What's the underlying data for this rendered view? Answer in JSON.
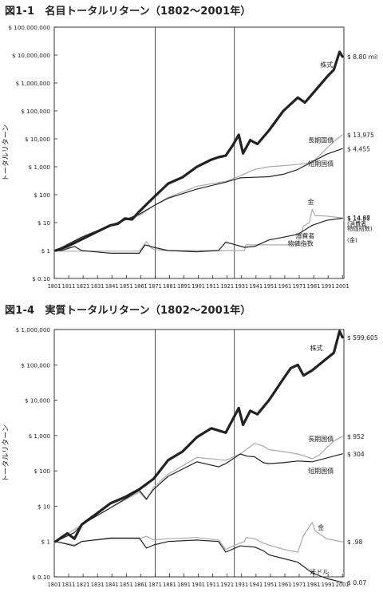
{
  "chart_data": [
    {
      "type": "line",
      "title": "図1-1　名目トータルリターン（1802〜2001年）",
      "ylabel": "トータルリターン",
      "yscale": "log",
      "ylim": [
        0.1,
        100000000
      ],
      "xlim": [
        1801,
        2002
      ],
      "x_ticks": [
        "1801",
        "1811",
        "1821",
        "1831",
        "1841",
        "1851",
        "1861",
        "1871",
        "1881",
        "1891",
        "1901",
        "1911",
        "1921",
        "1931",
        "1941",
        "1951",
        "1961",
        "1971",
        "1981",
        "1991",
        "2001"
      ],
      "y_ticks": [
        "$ 0.10",
        "$ 1",
        "$ 10",
        "$ 100",
        "$ 1,000",
        "$ 10,000",
        "$ 100,000",
        "$ 1,000,000",
        "$ 10,000,000",
        "$ 100,000,000"
      ],
      "vlines": [
        1871,
        1926
      ],
      "grid": false,
      "series": [
        {
          "name": "株式",
          "color": "#222222",
          "width": 3.2,
          "end_label": "$ 8.80 mil",
          "x": [
            1802,
            1810,
            1820,
            1830,
            1840,
            1845,
            1850,
            1855,
            1860,
            1865,
            1870,
            1880,
            1890,
            1900,
            1910,
            1915,
            1920,
            1925,
            1929,
            1932,
            1937,
            1942,
            1950,
            1960,
            1970,
            1975,
            1980,
            1990,
            1995,
            1999,
            2001
          ],
          "y": [
            1,
            1.4,
            2.5,
            4.5,
            8,
            9,
            14,
            13,
            25,
            45,
            80,
            250,
            420,
            1000,
            1800,
            2200,
            2500,
            6000,
            14000,
            3000,
            9000,
            6500,
            20000,
            100000,
            300000,
            200000,
            400000,
            1600000,
            3000000,
            13000000,
            8800000
          ]
        },
        {
          "name": "長期国債",
          "color": "#aaaaaa",
          "width": 1.2,
          "end_label": "$ 13,975",
          "x": [
            1802,
            1820,
            1840,
            1860,
            1870,
            1880,
            1900,
            1920,
            1929,
            1940,
            1950,
            1960,
            1970,
            1975,
            1980,
            1985,
            1990,
            1995,
            2001
          ],
          "y": [
            1,
            3,
            8,
            18,
            40,
            80,
            200,
            300,
            450,
            800,
            1000,
            1100,
            1200,
            1300,
            1450,
            2500,
            4500,
            8000,
            13975
          ]
        },
        {
          "name": "短期国債",
          "color": "#222222",
          "width": 1.2,
          "end_label": "$ 4,455",
          "x": [
            1802,
            1820,
            1840,
            1860,
            1870,
            1880,
            1900,
            1920,
            1930,
            1940,
            1950,
            1960,
            1970,
            1980,
            1990,
            2001
          ],
          "y": [
            1,
            3,
            8,
            20,
            40,
            75,
            160,
            280,
            400,
            420,
            440,
            540,
            800,
            1500,
            2800,
            4455
          ]
        },
        {
          "name": "金",
          "color": "#aaaaaa",
          "width": 1.2,
          "end_label": "$ 14.67",
          "x": [
            1802,
            1860,
            1862,
            1865,
            1868,
            1870,
            1878,
            1933,
            1934,
            1967,
            1970,
            1974,
            1978,
            1980,
            1982,
            1990,
            2001
          ],
          "y": [
            0.95,
            0.95,
            1.3,
            2.1,
            1.3,
            1.1,
            1,
            1,
            1.6,
            1.6,
            1.7,
            7.5,
            10,
            30,
            18,
            17,
            14.67
          ]
        },
        {
          "name": "消費者物価指数",
          "color": "#222222",
          "width": 1.2,
          "end_label": "$ 14.38",
          "x": [
            1802,
            1806,
            1815,
            1820,
            1840,
            1860,
            1864,
            1866,
            1870,
            1880,
            1900,
            1915,
            1920,
            1925,
            1933,
            1940,
            1950,
            1960,
            1970,
            1980,
            1990,
            2001
          ],
          "y": [
            1,
            1,
            1.4,
            1,
            0.8,
            0.8,
            1.6,
            1.5,
            1.3,
            1,
            0.9,
            1,
            2,
            1.7,
            1.3,
            1.4,
            2.4,
            3,
            3.8,
            8,
            12,
            14.38
          ]
        }
      ],
      "annotations": [
        {
          "text": "株式",
          "x": 1990,
          "y": 4500000
        },
        {
          "text": "長期国債",
          "x": 1986,
          "y": 9000
        },
        {
          "text": "短期国債",
          "x": 1986,
          "y": 1300
        },
        {
          "text": "金",
          "x": 1979,
          "y": 55
        },
        {
          "text": "消費者",
          "x": 1975,
          "y": 3.4
        },
        {
          "text": "物価指数",
          "x": 1972,
          "y": 1.8
        }
      ],
      "end_sublabels": [
        {
          "text": "(消費者",
          "y": 9.5
        },
        {
          "text": "物価指数)",
          "y": 6.3
        },
        {
          "text": "(金)",
          "y": 2.4
        }
      ]
    },
    {
      "type": "line",
      "title": "図1-4　実質トータルリターン（1802〜2001年）",
      "ylabel": "トータルリターン",
      "yscale": "log",
      "ylim": [
        0.1,
        1000000
      ],
      "xlim": [
        1801,
        2002
      ],
      "x_ticks": [
        "1801",
        "1811",
        "1821",
        "1831",
        "1841",
        "1851",
        "1861",
        "1871",
        "1881",
        "1891",
        "1901",
        "1911",
        "1921",
        "1931",
        "1941",
        "1951",
        "1961",
        "1971",
        "1981",
        "1991",
        "2001"
      ],
      "y_ticks": [
        "$ 0.10",
        "$ 1",
        "$ 10",
        "$ 100",
        "$ 1,000",
        "$ 10,000",
        "$ 100,000",
        "$ 1,000,000"
      ],
      "vlines": [
        1871,
        1926
      ],
      "grid": false,
      "series": [
        {
          "name": "株式",
          "color": "#222222",
          "width": 3.2,
          "end_label": "$ 599,605",
          "x": [
            1802,
            1810,
            1815,
            1820,
            1830,
            1840,
            1850,
            1860,
            1870,
            1880,
            1890,
            1900,
            1910,
            1920,
            1929,
            1932,
            1937,
            1942,
            1950,
            1960,
            1965,
            1970,
            1974,
            1980,
            1990,
            1995,
            1999,
            2001
          ],
          "y": [
            1,
            1.7,
            1.2,
            3,
            6,
            12,
            18,
            30,
            60,
            200,
            350,
            900,
            1600,
            1200,
            6000,
            2000,
            5000,
            4000,
            10000,
            40000,
            80000,
            100000,
            50000,
            70000,
            150000,
            220000,
            900000,
            599605
          ]
        },
        {
          "name": "長期国債",
          "color": "#aaaaaa",
          "width": 1.2,
          "end_label": "$ 952",
          "x": [
            1802,
            1820,
            1840,
            1860,
            1865,
            1870,
            1880,
            1900,
            1920,
            1930,
            1940,
            1946,
            1950,
            1960,
            1970,
            1975,
            1980,
            1985,
            1990,
            1995,
            2001
          ],
          "y": [
            1,
            3,
            9,
            25,
            15,
            35,
            80,
            240,
            200,
            300,
            600,
            500,
            400,
            350,
            300,
            260,
            220,
            280,
            450,
            700,
            952
          ]
        },
        {
          "name": "短期国債",
          "color": "#222222",
          "width": 1.2,
          "end_label": "$ 304",
          "x": [
            1802,
            1815,
            1820,
            1840,
            1860,
            1865,
            1870,
            1880,
            1900,
            1915,
            1920,
            1930,
            1935,
            1940,
            1946,
            1950,
            1960,
            1970,
            1980,
            1990,
            2001
          ],
          "y": [
            1,
            1.8,
            3,
            9,
            28,
            16,
            30,
            70,
            180,
            130,
            160,
            300,
            260,
            250,
            170,
            160,
            170,
            190,
            180,
            230,
            304
          ]
        },
        {
          "name": "金",
          "color": "#aaaaaa",
          "width": 1.2,
          "end_label": "$ .98",
          "x": [
            1802,
            1815,
            1820,
            1840,
            1860,
            1865,
            1870,
            1880,
            1900,
            1915,
            1920,
            1930,
            1933,
            1934,
            1940,
            1946,
            1950,
            1960,
            1970,
            1974,
            1980,
            1982,
            1990,
            2001
          ],
          "y": [
            1,
            0.8,
            1,
            1.2,
            1.2,
            1.4,
            1.1,
            1.2,
            1.3,
            1.1,
            0.6,
            0.9,
            1,
            1.3,
            1.2,
            0.9,
            0.8,
            0.6,
            0.5,
            1.5,
            3.5,
            2,
            1.2,
            0.98
          ]
        },
        {
          "name": "米ドル",
          "color": "#222222",
          "width": 1.2,
          "end_label": "$ 0.07",
          "x": [
            1802,
            1815,
            1820,
            1840,
            1860,
            1865,
            1870,
            1880,
            1900,
            1915,
            1920,
            1930,
            1940,
            1946,
            1950,
            1960,
            1970,
            1980,
            1990,
            2001
          ],
          "y": [
            1,
            0.75,
            1,
            1.25,
            1.25,
            0.65,
            0.8,
            1,
            1.1,
            1,
            0.5,
            0.75,
            0.7,
            0.55,
            0.42,
            0.33,
            0.26,
            0.13,
            0.09,
            0.07
          ]
        }
      ],
      "annotations": [
        {
          "text": "株式",
          "x": 1983,
          "y": 300000
        },
        {
          "text": "長期国債",
          "x": 1986,
          "y": 800
        },
        {
          "text": "短期国債",
          "x": 1986,
          "y": 100
        },
        {
          "text": "金",
          "x": 1986,
          "y": 2.5
        },
        {
          "text": "米ドル",
          "x": 1985,
          "y": 0.14
        }
      ]
    }
  ]
}
